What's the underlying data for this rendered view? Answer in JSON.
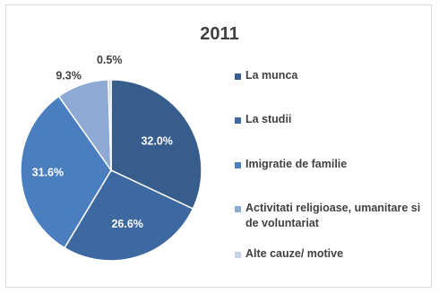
{
  "chart_data": {
    "type": "pie",
    "title": "2011",
    "categories": [
      "La munca",
      "La studii",
      "Imigratie de familie",
      "Activitati religioase, umanitare si de voluntariat",
      "Alte cauze/ motive"
    ],
    "values": [
      32.0,
      26.6,
      31.6,
      9.3,
      0.5
    ],
    "data_labels": [
      "32.0%",
      "26.6%",
      "31.6%",
      "9.3%",
      "0.5%"
    ],
    "colors": [
      "#375d8c",
      "#3d68a0",
      "#4a7ebf",
      "#8ea9d3",
      "#c5d2e7"
    ],
    "legend_position": "right"
  }
}
